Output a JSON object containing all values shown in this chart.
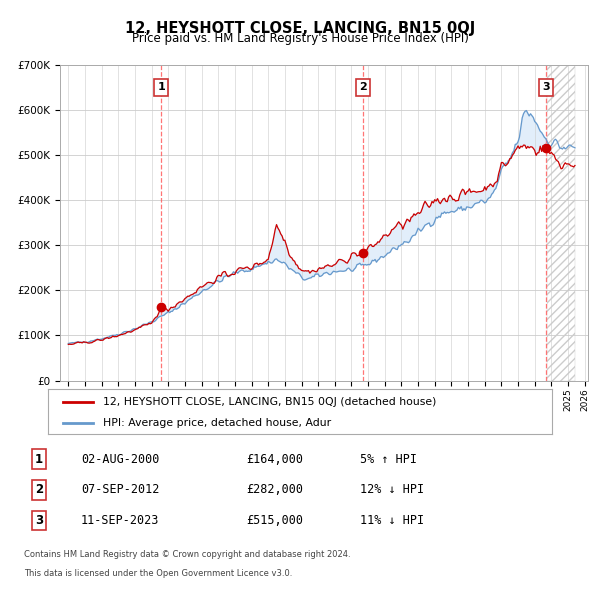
{
  "title": "12, HEYSHOTT CLOSE, LANCING, BN15 0QJ",
  "subtitle": "Price paid vs. HM Land Registry's House Price Index (HPI)",
  "red_label": "12, HEYSHOTT CLOSE, LANCING, BN15 0QJ (detached house)",
  "blue_label": "HPI: Average price, detached house, Adur",
  "sales": [
    {
      "num": 1,
      "date": "02-AUG-2000",
      "year": 2000.58,
      "price": 164000,
      "pct": "5%",
      "dir": "↑"
    },
    {
      "num": 2,
      "date": "07-SEP-2012",
      "year": 2012.68,
      "price": 282000,
      "pct": "12%",
      "dir": "↓"
    },
    {
      "num": 3,
      "date": "11-SEP-2023",
      "year": 2023.68,
      "price": 515000,
      "pct": "11%",
      "dir": "↓"
    }
  ],
  "footnote1": "Contains HM Land Registry data © Crown copyright and database right 2024.",
  "footnote2": "This data is licensed under the Open Government Licence v3.0.",
  "ylim": [
    0,
    700000
  ],
  "xlim": [
    1994.5,
    2026.2
  ],
  "red_color": "#cc0000",
  "blue_color": "#6699cc",
  "fill_color": "#d0e4f7",
  "dashed_color": "#ff6666",
  "background_color": "#ffffff",
  "grid_color": "#cccccc"
}
